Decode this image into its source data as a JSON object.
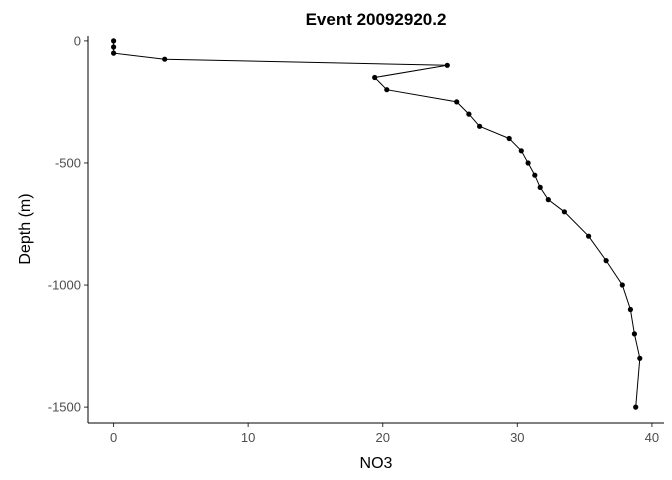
{
  "chart_data": {
    "type": "line",
    "title": "Event 20092920.2",
    "xlabel": "NO3",
    "ylabel": "Depth (m)",
    "xlim": [
      -1.9,
      40.9
    ],
    "ylim": [
      -1565,
      20
    ],
    "xticks": [
      0,
      10,
      20,
      30,
      40
    ],
    "yticks": [
      0,
      -500,
      -1000,
      -1500
    ],
    "xtick_labels": [
      "0",
      "10",
      "20",
      "30",
      "40"
    ],
    "ytick_labels": [
      "0",
      "-500",
      "-1000",
      "-1500"
    ],
    "grid": false,
    "legend": "none",
    "series": [
      {
        "color": "#000000",
        "points": [
          {
            "x": 0.0,
            "y": 0
          },
          {
            "x": 0.0,
            "y": -25
          },
          {
            "x": 0.0,
            "y": -50
          },
          {
            "x": 3.8,
            "y": -75
          },
          {
            "x": 24.8,
            "y": -100
          },
          {
            "x": 19.4,
            "y": -150
          },
          {
            "x": 20.3,
            "y": -200
          },
          {
            "x": 25.5,
            "y": -250
          },
          {
            "x": 26.4,
            "y": -300
          },
          {
            "x": 27.2,
            "y": -350
          },
          {
            "x": 29.4,
            "y": -400
          },
          {
            "x": 30.3,
            "y": -450
          },
          {
            "x": 30.8,
            "y": -500
          },
          {
            "x": 31.3,
            "y": -550
          },
          {
            "x": 31.7,
            "y": -600
          },
          {
            "x": 32.3,
            "y": -650
          },
          {
            "x": 33.5,
            "y": -700
          },
          {
            "x": 35.3,
            "y": -800
          },
          {
            "x": 36.6,
            "y": -900
          },
          {
            "x": 37.8,
            "y": -1000
          },
          {
            "x": 38.4,
            "y": -1100
          },
          {
            "x": 38.7,
            "y": -1200
          },
          {
            "x": 39.1,
            "y": -1300
          },
          {
            "x": 38.8,
            "y": -1500
          }
        ]
      }
    ]
  }
}
